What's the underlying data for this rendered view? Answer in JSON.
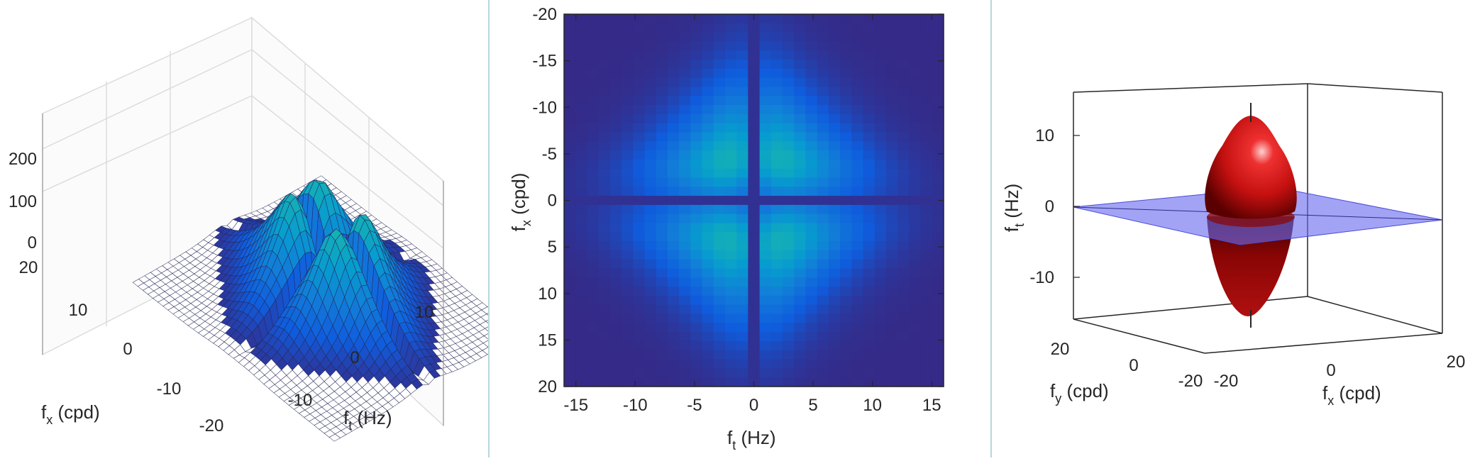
{
  "colors": {
    "parula_low": "#352a87",
    "parula_mid": "#12bed6",
    "parula_high": "#f9fb0e",
    "surface_red": "#c81010",
    "plane_blue": "#6b6bf0",
    "divider": "#b9d6dc"
  },
  "chart_data": [
    {
      "type": "surface",
      "xlabel": {
        "main": "f",
        "sub": "x",
        "unit": " (cpd)"
      },
      "ylabel": {
        "main": "f",
        "sub": "t",
        "unit": " (Hz)"
      },
      "x_ticks": [
        "20",
        "10",
        "0",
        "-10",
        "-20"
      ],
      "y_ticks": [
        "10",
        "0",
        "-10"
      ],
      "z_ticks": [
        "200",
        "100",
        "0"
      ],
      "xlim": [
        -20,
        20
      ],
      "ylim": [
        -16,
        16
      ],
      "zlim": [
        0,
        200
      ],
      "peak_value": 180,
      "peak_location_fx": 4,
      "grid": true
    },
    {
      "type": "heatmap",
      "xlabel": {
        "main": "f",
        "sub": "t",
        "unit": " (Hz)"
      },
      "ylabel": {
        "main": "f",
        "sub": "x",
        "unit": " (cpd)"
      },
      "x_ticks": [
        "-15",
        "-10",
        "-5",
        "0",
        "5",
        "10",
        "15"
      ],
      "y_ticks": [
        "-20",
        "-15",
        "-10",
        "-5",
        "0",
        "5",
        "10",
        "15",
        "20"
      ],
      "xlim": [
        -16,
        16
      ],
      "ylim": [
        -20,
        20
      ],
      "y_reversed": true,
      "peak_fx": 4,
      "peak_ft": 2.5,
      "grid": false
    },
    {
      "type": "surface",
      "xlabel": {
        "main": "f",
        "sub": "x",
        "unit": " (cpd)"
      },
      "ylabel": {
        "main": "f",
        "sub": "y",
        "unit": " (cpd)"
      },
      "zlabel": {
        "main": "f",
        "sub": "t",
        "unit": " (Hz)"
      },
      "x_ticks": [
        "-20",
        "0",
        "20"
      ],
      "y_ticks": [
        "20",
        "0",
        "-20"
      ],
      "z_ticks": [
        "10",
        "0",
        "-10"
      ],
      "xlim": [
        -20,
        20
      ],
      "ylim": [
        -20,
        20
      ],
      "zlim": [
        -16,
        16
      ],
      "surface_peak_ft": 13,
      "plane_ft": 0,
      "grid": false
    }
  ]
}
